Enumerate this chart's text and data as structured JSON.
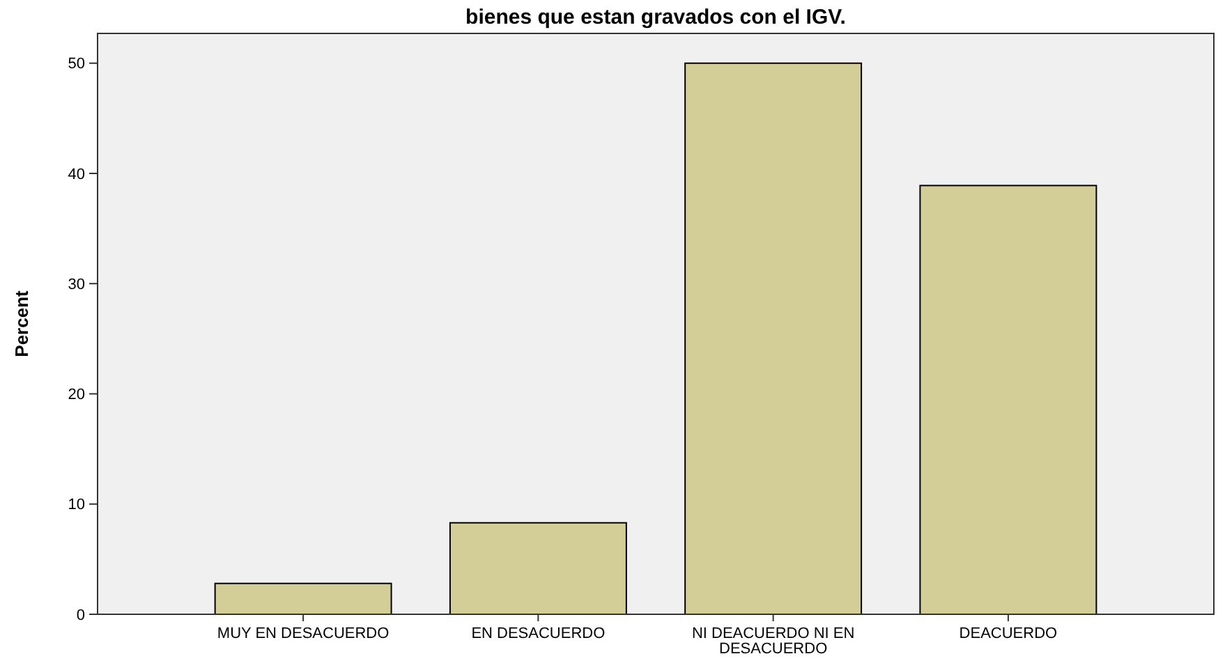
{
  "chart_data": {
    "type": "bar",
    "title": "bienes que estan gravados con el IGV.",
    "ylabel": "Percent",
    "categories": [
      "MUY EN DESACUERDO",
      "EN DESACUERDO",
      "NI DEACUERDO NI EN DESACUERDO",
      "DEACUERDO"
    ],
    "values": [
      2.8,
      8.3,
      50,
      38.9
    ],
    "color": "#d3ce97",
    "ylim": [
      0,
      52.7
    ],
    "yticks": [
      0,
      10,
      20,
      30,
      40,
      50
    ],
    "grid": false
  }
}
